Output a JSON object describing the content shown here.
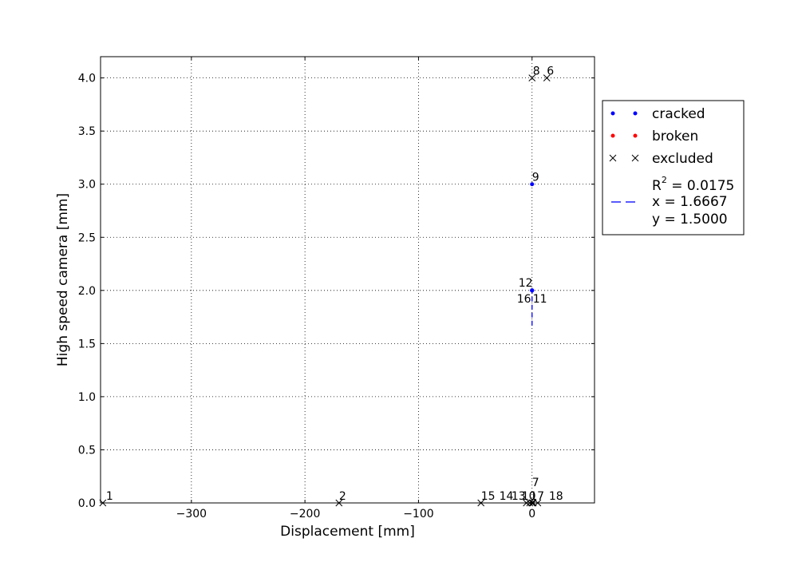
{
  "chart_data": {
    "type": "scatter",
    "title": "",
    "xlabel": "Displacement [mm]",
    "ylabel": "High speed camera [mm]",
    "xlim": [
      -380,
      55
    ],
    "ylim": [
      0,
      4.2
    ],
    "xticks": [
      -300,
      -200,
      -100,
      0
    ],
    "xtick_labels": [
      "−300",
      "−200",
      "−100",
      "0"
    ],
    "yticks": [
      0.0,
      0.5,
      1.0,
      1.5,
      2.0,
      2.5,
      3.0,
      3.5,
      4.0
    ],
    "ytick_labels": [
      "0.0",
      "0.5",
      "1.0",
      "1.5",
      "2.0",
      "2.5",
      "3.0",
      "3.5",
      "4.0"
    ],
    "grid": true,
    "legend_placement": "outside-right",
    "colors": {
      "cracked": "#0000ff",
      "broken": "#ff0000",
      "excluded": "#000000",
      "fit": "#0000ff"
    },
    "series": [
      {
        "name": "cracked",
        "marker": "dot",
        "points": [
          {
            "x": 0,
            "y": 3.0,
            "label": "9"
          },
          {
            "x": 0,
            "y": 2.0,
            "label": "12"
          },
          {
            "x": 0,
            "y": 2.0,
            "label": "16"
          },
          {
            "x": 0,
            "y": 2.0,
            "label": "11"
          }
        ]
      },
      {
        "name": "broken",
        "marker": "dot",
        "points": []
      },
      {
        "name": "excluded",
        "marker": "x",
        "points": [
          {
            "x": -378,
            "y": 0.0,
            "label": "1"
          },
          {
            "x": -170,
            "y": 0.0,
            "label": "2"
          },
          {
            "x": -45,
            "y": 0.0,
            "label": "15"
          },
          {
            "x": -5,
            "y": 0.0,
            "label": "14"
          },
          {
            "x": -2,
            "y": 0.0,
            "label": "13"
          },
          {
            "x": 0,
            "y": 0.0,
            "label": "10"
          },
          {
            "x": 1,
            "y": 0.0,
            "label": "17"
          },
          {
            "x": 0,
            "y": 0.0,
            "label": "7"
          },
          {
            "x": 5,
            "y": 0.0,
            "label": "18"
          },
          {
            "x": 0,
            "y": 4.0,
            "label": "8"
          },
          {
            "x": 13,
            "y": 4.0,
            "label": "6"
          }
        ]
      }
    ],
    "fit_line": {
      "name": "fit",
      "style": "dashed",
      "points": [
        {
          "x": 0,
          "y": 1.67
        },
        {
          "x": 0,
          "y": 2.0
        }
      ]
    },
    "legend": {
      "entries": [
        {
          "label": "cracked",
          "marker": "dot",
          "color_key": "cracked"
        },
        {
          "label": "broken",
          "marker": "dot",
          "color_key": "broken"
        },
        {
          "label": "excluded",
          "marker": "x",
          "color_key": "excluded"
        }
      ],
      "fit_entry": {
        "r2_label": "R",
        "r2_superscript": "2",
        "r2_value": " = 0.0175",
        "x_text": "x = 1.6667",
        "y_text": "y = 1.5000"
      }
    }
  }
}
